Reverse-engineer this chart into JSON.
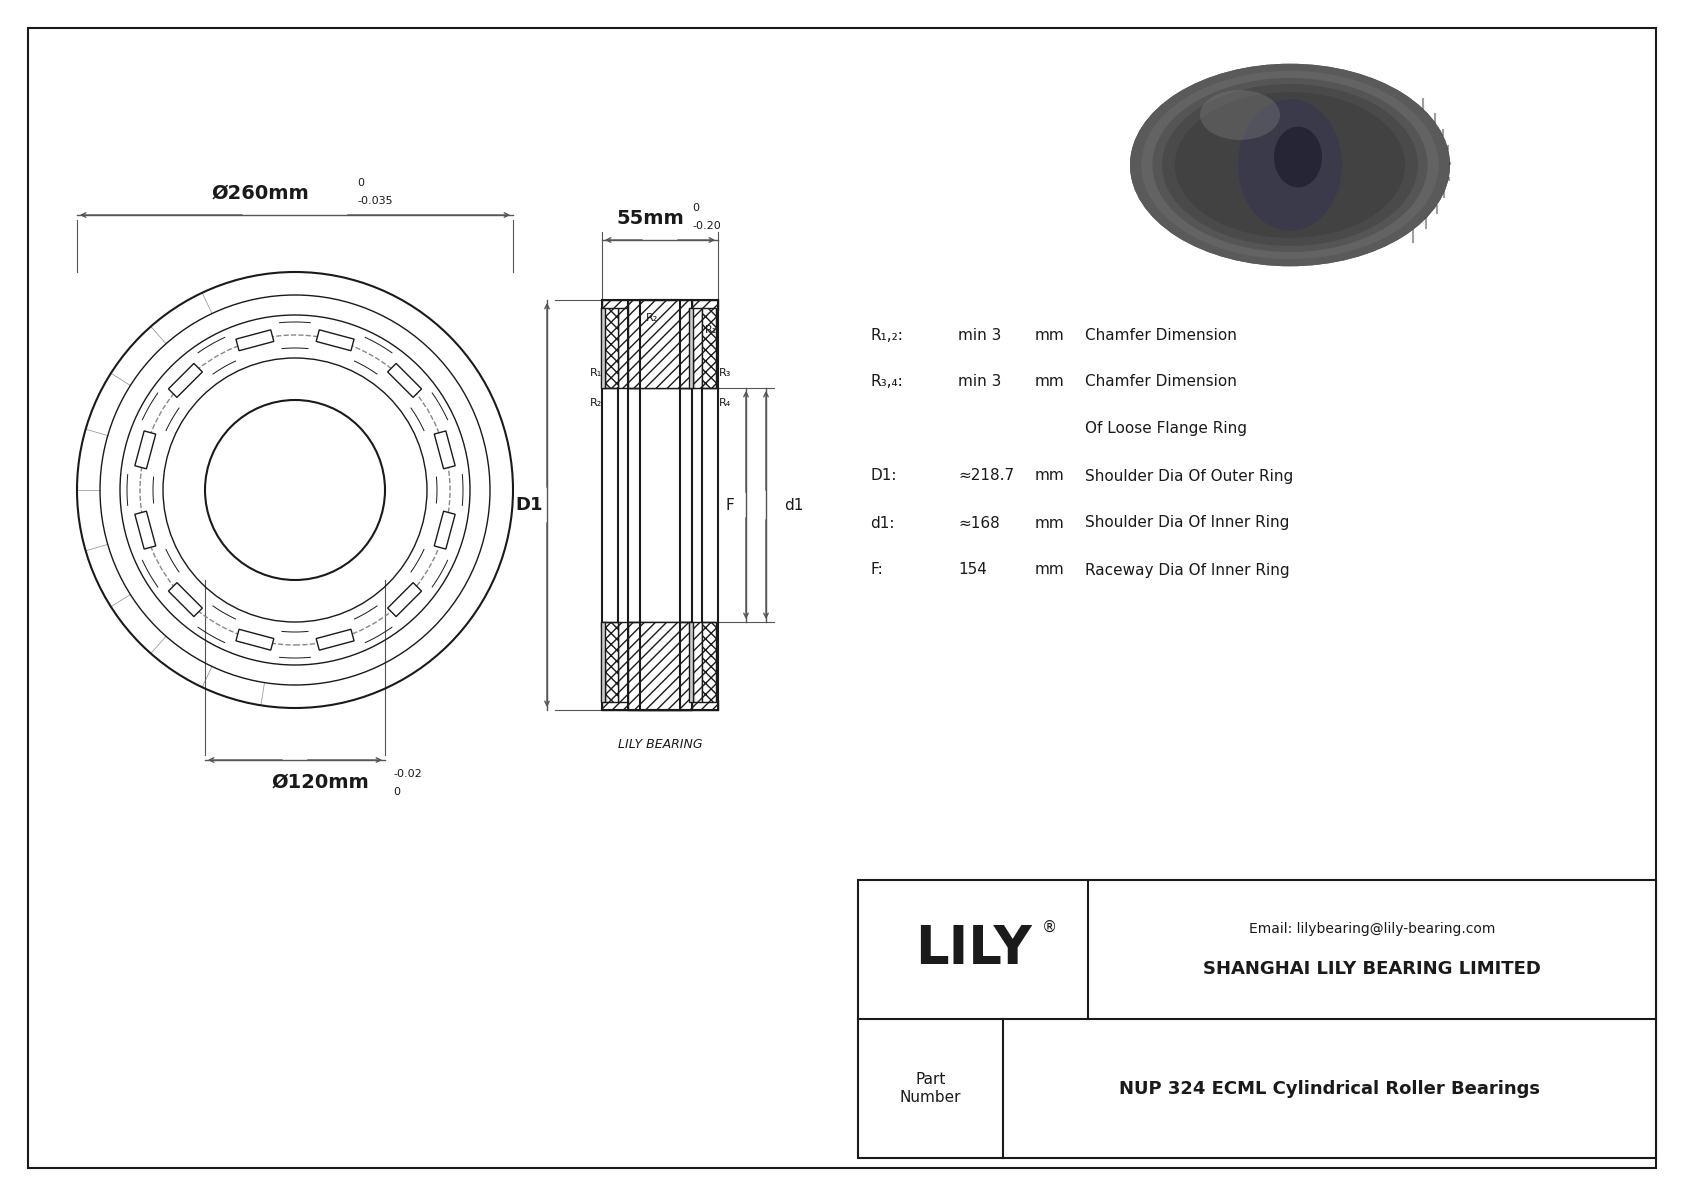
{
  "bg_color": "#ffffff",
  "border_color": "#1a1a1a",
  "part_number": "NUP 324 ECML Cylindrical Roller Bearings",
  "company": "SHANGHAI LILY BEARING LIMITED",
  "email": "Email: lilybearing@lily-bearing.com",
  "lily_text": "LILY",
  "part_label": "Part\nNumber",
  "dim_outer": "Ø260mm",
  "dim_outer_tol_top": "0",
  "dim_outer_tol_bot": "-0.035",
  "dim_inner": "Ø120mm",
  "dim_inner_tol_top": "0",
  "dim_inner_tol_bot": "-0.02",
  "dim_width": "55mm",
  "dim_width_tol_top": "0",
  "dim_width_tol_bot": "-0.20",
  "params": [
    [
      "R₁,₂:",
      "min 3",
      "mm",
      "Chamfer Dimension"
    ],
    [
      "R₃,₄:",
      "min 3",
      "mm",
      "Chamfer Dimension"
    ],
    [
      "",
      "",
      "",
      "Of Loose Flange Ring"
    ],
    [
      "D1:",
      "≈218.7",
      "mm",
      "Shoulder Dia Of Outer Ring"
    ],
    [
      "d1:",
      "≈168",
      "mm",
      "Shoulder Dia Of Inner Ring"
    ],
    [
      "F:",
      "154",
      "mm",
      "Raceway Dia Of Inner Ring"
    ]
  ],
  "lily_bearing_label": "LILY BEARING",
  "label_D1": "D1",
  "label_d1": "d1",
  "label_F": "F",
  "label_R2_top": "R₂",
  "label_R1_topright": "R₁",
  "label_R1_left": "R₁",
  "label_R2_left": "R₂",
  "label_R3": "R₃",
  "label_R4": "R₄"
}
